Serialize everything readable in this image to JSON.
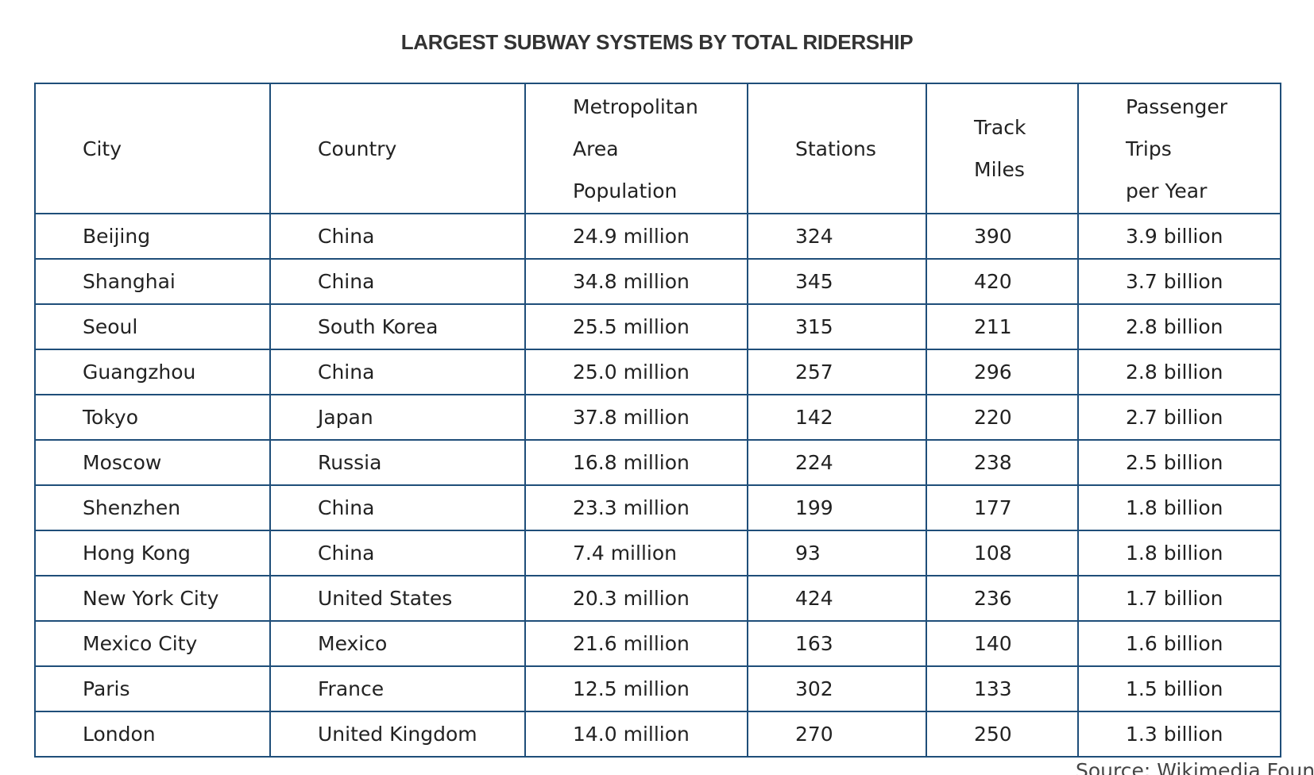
{
  "title": "LARGEST SUBWAY SYSTEMS BY TOTAL RIDERSHIP",
  "table": {
    "columns": [
      [
        "City"
      ],
      [
        "Country"
      ],
      [
        "Metropolitan",
        "Area",
        "Population"
      ],
      [
        "Stations"
      ],
      [
        "Track",
        "Miles"
      ],
      [
        "Passenger",
        "Trips",
        "per Year"
      ]
    ],
    "rows": [
      [
        "Beijing",
        "China",
        "24.9 million",
        "324",
        "390",
        "3.9 billion"
      ],
      [
        "Shanghai",
        "China",
        "34.8 million",
        "345",
        "420",
        "3.7 billion"
      ],
      [
        "Seoul",
        "South Korea",
        "25.5 million",
        "315",
        "211",
        "2.8 billion"
      ],
      [
        "Guangzhou",
        "China",
        "25.0 million",
        "257",
        "296",
        "2.8 billion"
      ],
      [
        "Tokyo",
        "Japan",
        "37.8 million",
        "142",
        "220",
        "2.7 billion"
      ],
      [
        "Moscow",
        "Russia",
        "16.8 million",
        "224",
        "238",
        "2.5 billion"
      ],
      [
        "Shenzhen",
        "China",
        "23.3 million",
        "199",
        "177",
        "1.8 billion"
      ],
      [
        "Hong Kong",
        "China",
        "7.4 million",
        "93",
        "108",
        "1.8 billion"
      ],
      [
        "New York City",
        "United States",
        "20.3 million",
        "424",
        "236",
        "1.7 billion"
      ],
      [
        "Mexico City",
        "Mexico",
        "21.6 million",
        "163",
        "140",
        "1.6 billion"
      ],
      [
        "Paris",
        "France",
        "12.5 million",
        "302",
        "133",
        "1.5 billion"
      ],
      [
        "London",
        "United Kingdom",
        "14.0 million",
        "270",
        "250",
        "1.3 billion"
      ]
    ]
  },
  "source": "Source: Wikimedia Foundation"
}
